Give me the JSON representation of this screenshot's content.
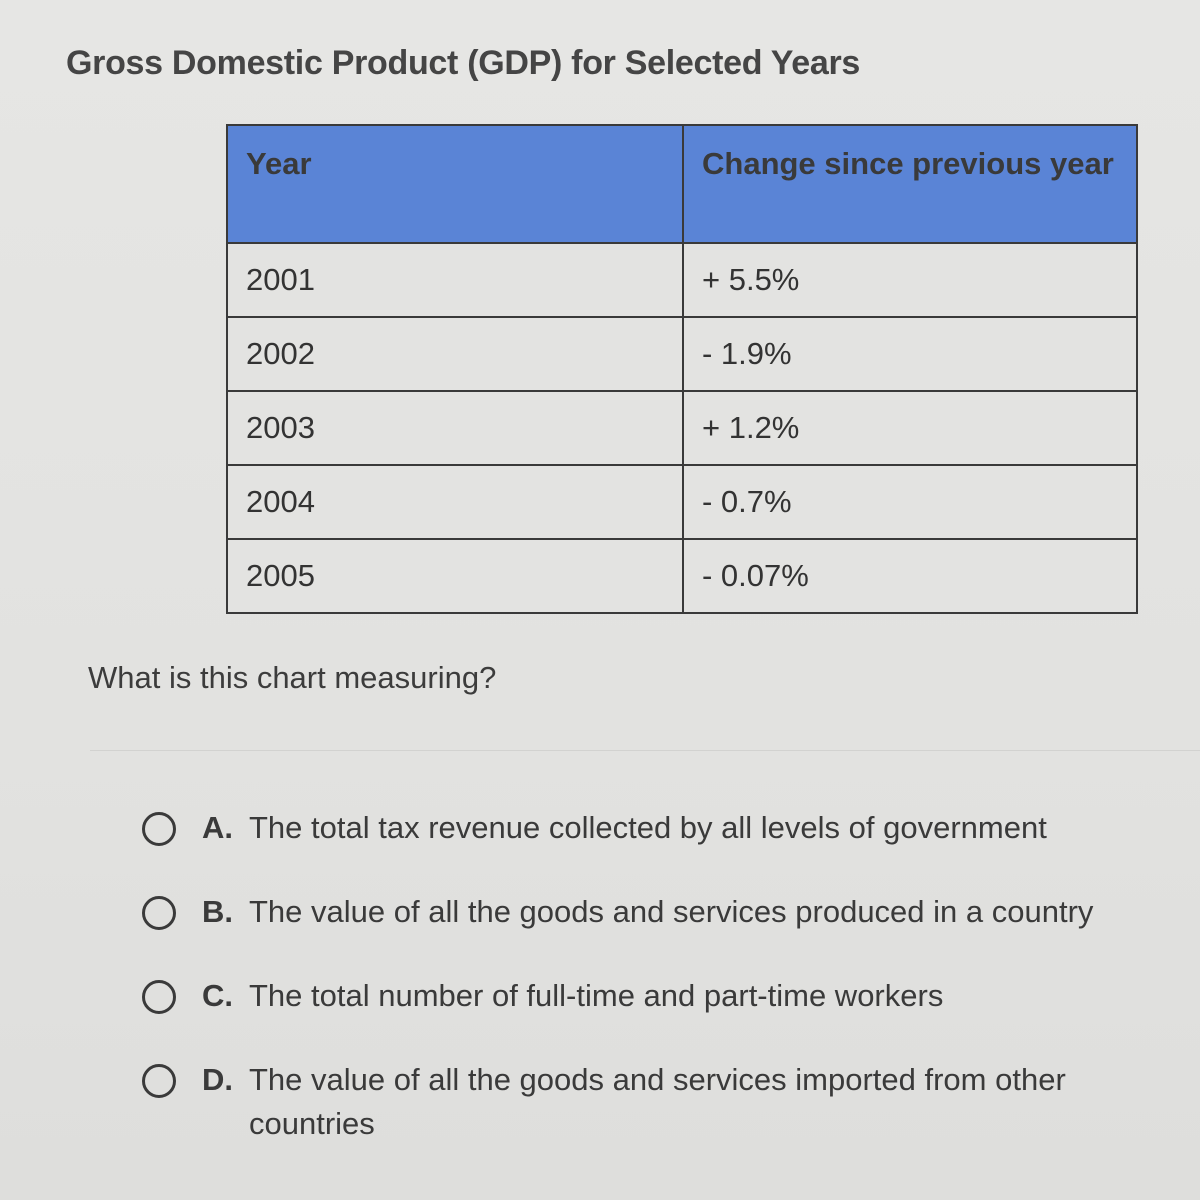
{
  "title": "Gross Domestic Product (GDP) for Selected Years",
  "table": {
    "headers": [
      "Year",
      "Change since previous year"
    ],
    "rows": [
      [
        "2001",
        "+ 5.5%"
      ],
      [
        "2002",
        "- 1.9%"
      ],
      [
        "2003",
        "+ 1.2%"
      ],
      [
        "2004",
        "- 0.7%"
      ],
      [
        "2005",
        "- 0.07%"
      ]
    ],
    "header_color": "#5a84d6"
  },
  "question": "What is this chart measuring?",
  "options": [
    {
      "letter": "A.",
      "text": "The total tax revenue collected by all levels of government",
      "selected": false
    },
    {
      "letter": "B.",
      "text": "The value of all the goods and services produced in a country",
      "selected": false
    },
    {
      "letter": "C.",
      "text": "The total number of full-time and part-time workers",
      "selected": false
    },
    {
      "letter": "D.",
      "text": "The value of all the goods and services imported from other countries",
      "selected": false
    }
  ]
}
